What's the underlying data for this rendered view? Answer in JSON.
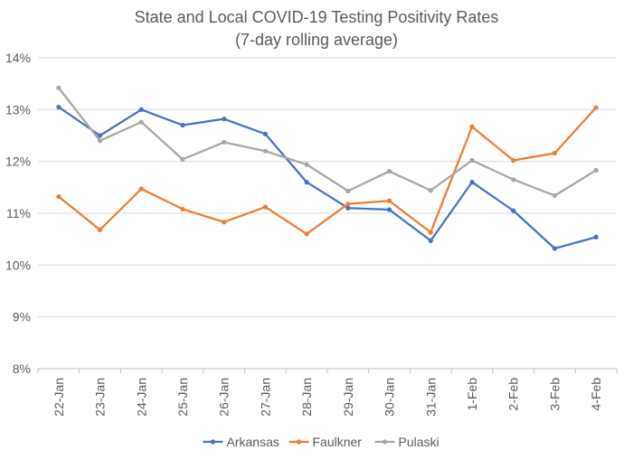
{
  "chart_data": {
    "type": "line",
    "title": "State and Local COVID-19 Testing Positivity Rates",
    "subtitle": "(7-day rolling average)",
    "xlabel": "",
    "ylabel": "",
    "categories": [
      "22-Jan",
      "23-Jan",
      "24-Jan",
      "25-Jan",
      "26-Jan",
      "27-Jan",
      "28-Jan",
      "29-Jan",
      "30-Jan",
      "31-Jan",
      "1-Feb",
      "2-Feb",
      "3-Feb",
      "4-Feb"
    ],
    "ylim": [
      8,
      14
    ],
    "yticks": [
      8,
      9,
      10,
      11,
      12,
      13,
      14
    ],
    "ytick_labels": [
      "8%",
      "9%",
      "10%",
      "11%",
      "12%",
      "13%",
      "14%"
    ],
    "grid": true,
    "legend_position": "bottom",
    "series": [
      {
        "name": "Arkansas",
        "color": "#4472C4",
        "values": [
          13.05,
          12.5,
          13.0,
          12.7,
          12.82,
          12.53,
          11.6,
          11.1,
          11.07,
          10.47,
          11.6,
          11.05,
          10.32,
          10.54
        ]
      },
      {
        "name": "Faulkner",
        "color": "#ED7D31",
        "values": [
          11.32,
          10.68,
          11.47,
          11.08,
          10.83,
          11.12,
          10.6,
          11.18,
          11.24,
          10.63,
          12.67,
          12.02,
          12.16,
          13.04
        ]
      },
      {
        "name": "Pulaski",
        "color": "#A5A5A5",
        "values": [
          13.42,
          12.4,
          12.76,
          12.04,
          12.37,
          12.2,
          11.94,
          11.43,
          11.81,
          11.44,
          12.02,
          11.65,
          11.34,
          11.83
        ]
      }
    ]
  }
}
